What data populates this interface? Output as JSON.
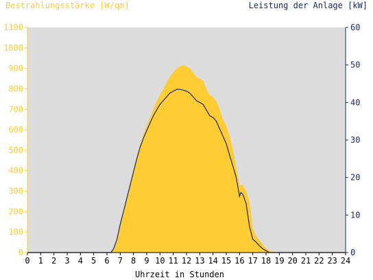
{
  "chart_data": {
    "type": "area",
    "left_axis_title": "Bestrahlungsstärke [W/qm]",
    "right_axis_title": "Leistung der Anlage [kW]",
    "xlabel": "Uhrzeit in Stunden",
    "xlim": [
      0,
      24
    ],
    "ylim_left": [
      0,
      1100
    ],
    "ylim_right": [
      0,
      60
    ],
    "x_ticks": [
      "0",
      "1",
      "2",
      "3",
      "4",
      "5",
      "6",
      "7",
      "8",
      "9",
      "10",
      "11",
      "12",
      "13",
      "14",
      "15",
      "16",
      "17",
      "18",
      "19",
      "20",
      "21",
      "22",
      "23",
      "24"
    ],
    "y_left_ticks": [
      "0",
      "100",
      "200",
      "300",
      "400",
      "500",
      "600",
      "700",
      "800",
      "900",
      "1000",
      "1100"
    ],
    "y_right_ticks": [
      "0",
      "10",
      "20",
      "30",
      "40",
      "50",
      "60"
    ],
    "grid": false,
    "colors": {
      "plot_background": "#dcdcdc",
      "irradiance_fill": "#ffcc33",
      "power_line": "#1a2a6c",
      "left_axis": "#ffcc33",
      "right_axis": "#1a2a6c",
      "text_dark": "#000000"
    },
    "series": [
      {
        "axis": "left",
        "style": "area",
        "x": [
          0,
          6.3,
          6.5,
          6.75,
          7,
          7.25,
          7.5,
          7.75,
          8,
          8.25,
          8.5,
          8.75,
          9,
          9.25,
          9.5,
          9.75,
          10,
          10.25,
          10.5,
          10.75,
          11,
          11.25,
          11.5,
          11.75,
          12,
          12.25,
          12.5,
          12.75,
          13,
          13.25,
          13.5,
          13.75,
          14,
          14.25,
          14.5,
          14.75,
          15,
          15.25,
          15.5,
          15.75,
          16,
          16.25,
          16.5,
          16.75,
          17,
          17.25,
          17.5,
          17.75,
          18,
          18.25,
          18.5,
          18.75,
          19,
          24
        ],
        "values": [
          0,
          0,
          20,
          60,
          130,
          200,
          270,
          340,
          410,
          470,
          530,
          580,
          620,
          660,
          700,
          740,
          770,
          800,
          830,
          860,
          880,
          900,
          910,
          915,
          910,
          900,
          880,
          860,
          850,
          840,
          800,
          770,
          760,
          740,
          700,
          650,
          620,
          570,
          500,
          420,
          330,
          330,
          300,
          250,
          120,
          80,
          60,
          40,
          20,
          10,
          5,
          0,
          0,
          0
        ]
      },
      {
        "axis": "right",
        "style": "line",
        "x": [
          0,
          6.3,
          6.5,
          6.75,
          7,
          7.25,
          7.5,
          7.75,
          8,
          8.25,
          8.5,
          8.75,
          9,
          9.25,
          9.5,
          9.75,
          10,
          10.25,
          10.5,
          10.75,
          11,
          11.25,
          11.5,
          11.75,
          12,
          12.25,
          12.5,
          12.75,
          13,
          13.25,
          13.5,
          13.75,
          14,
          14.25,
          14.5,
          14.75,
          15,
          15.25,
          15.5,
          15.75,
          16,
          16.1,
          16.25,
          16.5,
          16.75,
          17,
          17.25,
          17.5,
          17.75,
          18,
          18.25,
          18.5,
          24
        ],
        "values": [
          0,
          0,
          1,
          3.5,
          7.5,
          11,
          14.5,
          18,
          21.5,
          25,
          28,
          30.5,
          32.5,
          34.5,
          36.5,
          38,
          39.5,
          40.5,
          41.5,
          42.5,
          43,
          43.5,
          43.5,
          43.3,
          43,
          42.5,
          41.5,
          40.5,
          40,
          39.5,
          38,
          36.5,
          36,
          35,
          33,
          31,
          29,
          26,
          23,
          20,
          15,
          16,
          15.5,
          13,
          7,
          3.5,
          2.8,
          1.8,
          1,
          0.5,
          0,
          0,
          0
        ]
      }
    ]
  }
}
